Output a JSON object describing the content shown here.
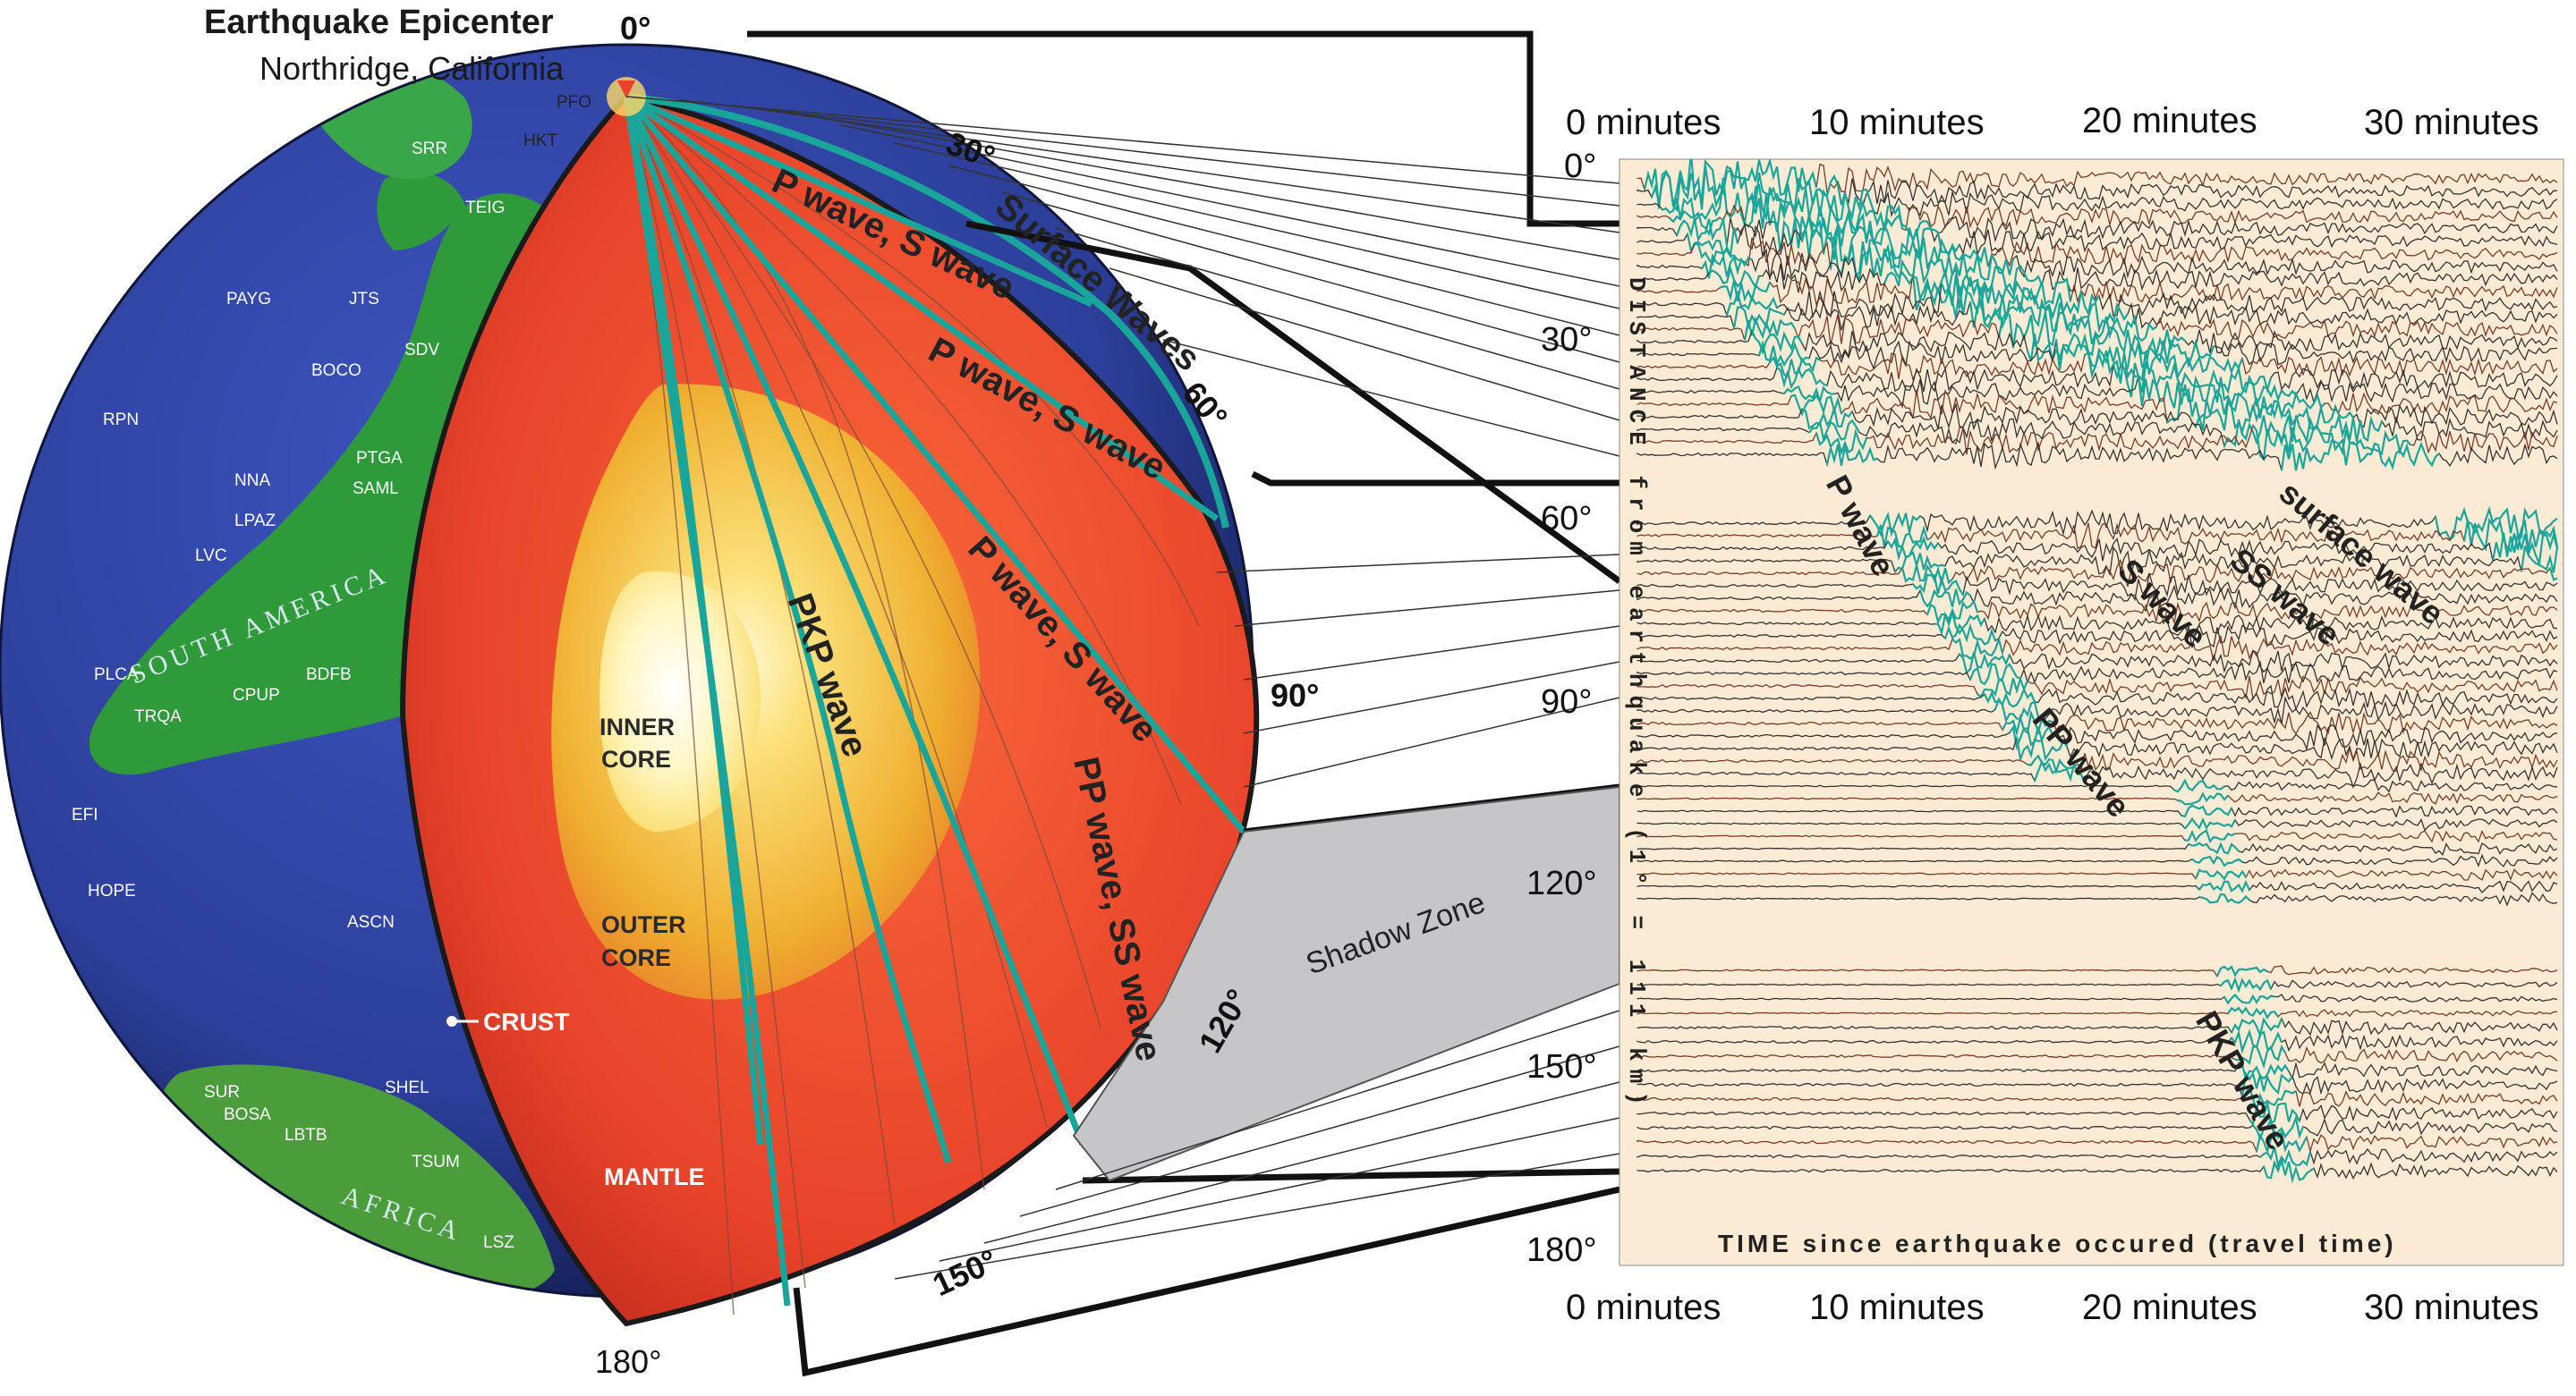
{
  "header": {
    "title": "Earthquake Epicenter",
    "subtitle": "Northridge, California"
  },
  "globe": {
    "angle_labels": {
      "deg0": "0°",
      "deg30": "30°",
      "deg60": "60°",
      "deg90": "90°",
      "deg120": "120°",
      "deg150": "150°",
      "deg180": "180°"
    },
    "layers": {
      "inner_core": [
        "INNER",
        "CORE"
      ],
      "outer_core": [
        "OUTER",
        "CORE"
      ],
      "mantle": "MANTLE",
      "crust": "CRUST"
    },
    "continents": {
      "south_america": "SOUTH AMERICA",
      "africa": "AFRICA"
    },
    "stations": [
      "PFO",
      "HKT",
      "SRR",
      "TEIG",
      "PAYG",
      "JTS",
      "SDV",
      "BOCO",
      "RPN",
      "PTGA",
      "NNA",
      "SAML",
      "LPAZ",
      "LVC",
      "PLCA",
      "BDFB",
      "CPUP",
      "TRQA",
      "EFI",
      "HOPE",
      "ASCN",
      "SHEL",
      "SUR",
      "BOSA",
      "LBTB",
      "TSUM",
      "LSZ"
    ],
    "wave_labels": {
      "surface": "Surface Waves",
      "ps1": "P wave, S wave",
      "ps2": "P wave, S wave",
      "ps3": "P wave, S wave",
      "pkp": "PKP wave",
      "pp_ss": "PP wave, SS wave"
    },
    "shadow_zone": "Shadow Zone"
  },
  "seismogram": {
    "time_ticks": [
      "0 minutes",
      "10 minutes",
      "20 minutes",
      "30 minutes"
    ],
    "distance_ticks": [
      "0°",
      "30°",
      "60°",
      "90°",
      "120°",
      "150°",
      "180°"
    ],
    "y_axis_label": "DISTANCE from earthquake (1° = 111 km)",
    "x_axis_label": "TIME since earthquake occured (travel time)",
    "phase_labels": {
      "p": "P wave",
      "s": "S wave",
      "pp": "PP wave",
      "ss": "SS wave",
      "surface": "surface wave",
      "pkp": "PKP wave"
    }
  },
  "colors": {
    "ocean": "#2c3f9a",
    "land": "#2f9a3a",
    "mantle": "#e8432a",
    "outer_core": "#f0b030",
    "inner_core": "#fff8d0",
    "ray": "#1aa59a",
    "brown_trace": "#7a3a28",
    "panel_bg": "#fbebd4",
    "shadow": "#c6c6c8"
  }
}
